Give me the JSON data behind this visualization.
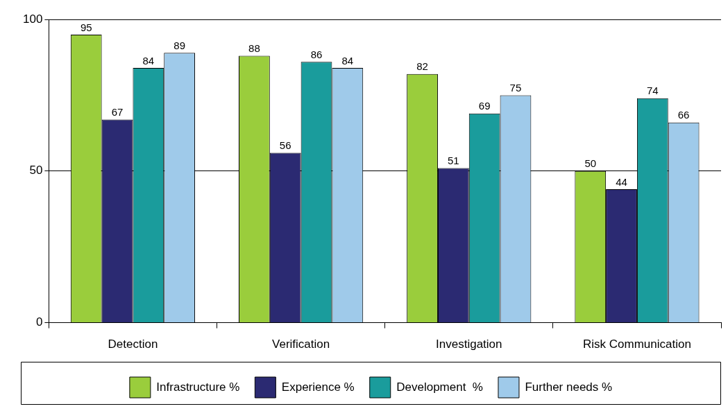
{
  "chart_data": {
    "type": "bar",
    "categories": [
      "Detection",
      "Verification",
      "Investigation",
      "Risk Communication"
    ],
    "series": [
      {
        "name": "Infrastructure %",
        "color": "#9acd3c",
        "values": [
          95,
          88,
          82,
          50
        ]
      },
      {
        "name": "Experience %",
        "color": "#2b2a72",
        "values": [
          67,
          56,
          51,
          44
        ]
      },
      {
        "name": "Development  %",
        "color": "#1a9c9c",
        "values": [
          84,
          86,
          69,
          74
        ]
      },
      {
        "name": "Further needs %",
        "color": "#9fcaea",
        "values": [
          89,
          84,
          75,
          66
        ]
      }
    ],
    "ylim": [
      0,
      100
    ],
    "yticks": [
      0,
      50,
      100
    ],
    "grid": "y",
    "legend": "bottom",
    "data_labels": true
  }
}
